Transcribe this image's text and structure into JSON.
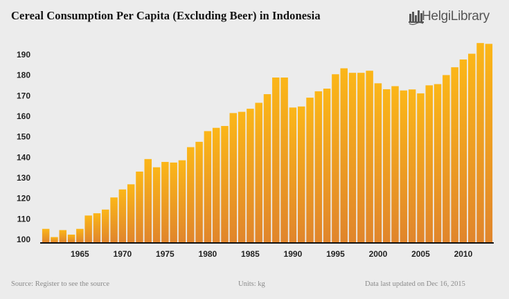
{
  "header": {
    "title": "Cereal Consumption Per Capita (Excluding Beer) in Indonesia",
    "logo_text": "HelgiLibrary"
  },
  "footer": {
    "source": "Source: Register to see the source",
    "units": "Units: kg",
    "updated": "Data last updated on Dec 16, 2015"
  },
  "colors": {
    "bar_top": "#fbb618",
    "bar_bottom": "#e0852c",
    "axis": "#111111",
    "background": "#ececec"
  },
  "chart_data": {
    "type": "bar",
    "title": "Cereal Consumption Per Capita (Excluding Beer) in Indonesia",
    "xlabel": "",
    "ylabel": "",
    "units": "kg",
    "ylim": [
      100,
      197
    ],
    "yticks": [
      100,
      110,
      120,
      130,
      140,
      150,
      160,
      170,
      180,
      190
    ],
    "xticks": [
      1965,
      1970,
      1975,
      1980,
      1985,
      1990,
      1995,
      2000,
      2005,
      2010
    ],
    "grid": false,
    "legend": "none",
    "categories": [
      1961,
      1962,
      1963,
      1964,
      1965,
      1966,
      1967,
      1968,
      1969,
      1970,
      1971,
      1972,
      1973,
      1974,
      1975,
      1976,
      1977,
      1978,
      1979,
      1980,
      1981,
      1982,
      1983,
      1984,
      1985,
      1986,
      1987,
      1988,
      1989,
      1990,
      1991,
      1992,
      1993,
      1994,
      1995,
      1996,
      1997,
      1998,
      1999,
      2000,
      2001,
      2002,
      2003,
      2004,
      2005,
      2006,
      2007,
      2008,
      2009,
      2010,
      2011,
      2012,
      2013
    ],
    "values": [
      105.0,
      101.0,
      104.4,
      102.2,
      105.0,
      111.5,
      112.6,
      114.4,
      120.3,
      124.2,
      126.7,
      132.9,
      139.0,
      135.0,
      137.6,
      137.3,
      138.4,
      144.8,
      147.4,
      152.6,
      154.2,
      155.1,
      161.4,
      162.0,
      163.5,
      166.4,
      170.6,
      178.7,
      178.7,
      164.1,
      164.6,
      168.9,
      172.0,
      173.3,
      180.3,
      183.2,
      181.0,
      181.0,
      182.0,
      175.9,
      173.0,
      174.5,
      172.4,
      172.9,
      171.0,
      174.9,
      175.5,
      179.9,
      183.7,
      187.5,
      190.3,
      195.5,
      195.1
    ]
  }
}
